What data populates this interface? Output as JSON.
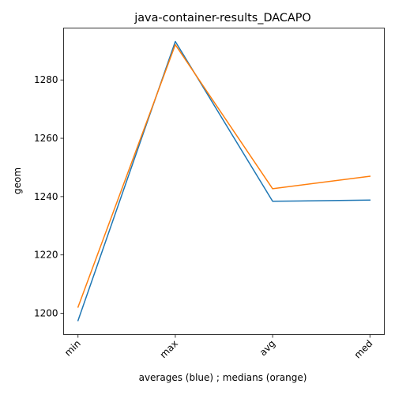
{
  "chart_data": {
    "type": "line",
    "title": "java-container-results_DACAPO",
    "xlabel": "averages (blue) ; medians (orange)",
    "ylabel": "geom",
    "categories": [
      "min",
      "max",
      "avg",
      "med"
    ],
    "series": [
      {
        "color": "#1f77b4",
        "values": [
          1197.5,
          1293.2,
          1238.4,
          1238.8
        ]
      },
      {
        "color": "#ff7f0e",
        "values": [
          1202.1,
          1292.1,
          1242.7,
          1247.0
        ]
      }
    ],
    "ylim": [
      1192.7,
      1297.8
    ],
    "yticks": [
      1200,
      1220,
      1240,
      1260,
      1280
    ],
    "grid": false
  }
}
